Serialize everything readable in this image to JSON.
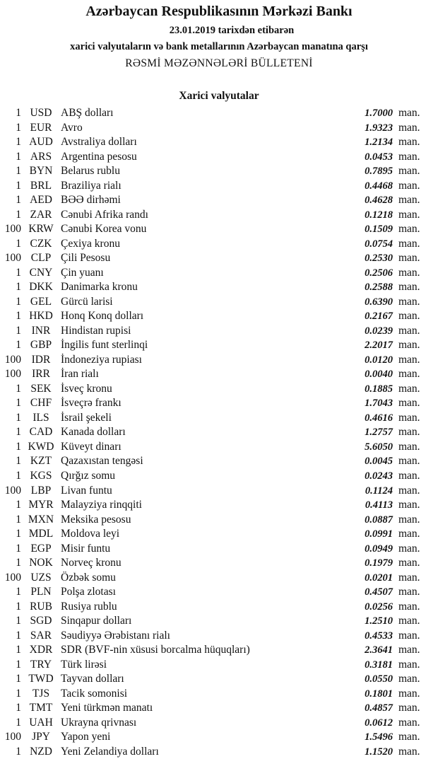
{
  "header": {
    "title": "Azərbaycan Respublikasının Mərkəzi Bankı",
    "date_line": "23.01.2019  tarixdən etibarən",
    "subtitle": "xarici valyutaların və bank metallarının Azərbaycan manatına qarşı",
    "bulletin": "RƏSMİ MƏZƏNNƏLƏRİ BÜLLETENİ",
    "section": "Xarici valyutalar"
  },
  "unit_label": "man.",
  "rates": [
    {
      "nominal": "1",
      "code": "USD",
      "name": "ABŞ dolları",
      "value": "1.7000"
    },
    {
      "nominal": "1",
      "code": "EUR",
      "name": "Avro",
      "value": "1.9323"
    },
    {
      "nominal": "1",
      "code": "AUD",
      "name": "Avstraliya dolları",
      "value": "1.2134"
    },
    {
      "nominal": "1",
      "code": "ARS",
      "name": "Argentina pesosu",
      "value": "0.0453"
    },
    {
      "nominal": "1",
      "code": "BYN",
      "name": "Belarus rublu",
      "value": "0.7895"
    },
    {
      "nominal": "1",
      "code": "BRL",
      "name": "Braziliya rialı",
      "value": "0.4468"
    },
    {
      "nominal": "1",
      "code": "AED",
      "name": "BƏƏ dirhəmi",
      "value": "0.4628"
    },
    {
      "nominal": "1",
      "code": "ZAR",
      "name": "Cənubi Afrika randı",
      "value": "0.1218"
    },
    {
      "nominal": "100",
      "code": "KRW",
      "name": "Cənubi Korea vonu",
      "value": "0.1509"
    },
    {
      "nominal": "1",
      "code": "CZK",
      "name": "Çexiya kronu",
      "value": "0.0754"
    },
    {
      "nominal": "100",
      "code": "CLP",
      "name": "Çili Pesosu",
      "value": "0.2530"
    },
    {
      "nominal": "1",
      "code": "CNY",
      "name": "Çin yuanı",
      "value": "0.2506"
    },
    {
      "nominal": "1",
      "code": "DKK",
      "name": "Danimarka kronu",
      "value": "0.2588"
    },
    {
      "nominal": "1",
      "code": "GEL",
      "name": "Gürcü larisi",
      "value": "0.6390"
    },
    {
      "nominal": "1",
      "code": "HKD",
      "name": "Honq Konq dolları",
      "value": "0.2167"
    },
    {
      "nominal": "1",
      "code": "INR",
      "name": "Hindistan rupisi",
      "value": "0.0239"
    },
    {
      "nominal": "1",
      "code": "GBP",
      "name": "İngilis funt sterlinqi",
      "value": "2.2017"
    },
    {
      "nominal": "100",
      "code": "IDR",
      "name": "İndoneziya rupiası",
      "value": "0.0120"
    },
    {
      "nominal": "100",
      "code": "IRR",
      "name": "İran rialı",
      "value": "0.0040"
    },
    {
      "nominal": "1",
      "code": "SEK",
      "name": "İsveç kronu",
      "value": "0.1885"
    },
    {
      "nominal": "1",
      "code": "CHF",
      "name": "İsveçrə frankı",
      "value": "1.7043"
    },
    {
      "nominal": "1",
      "code": "ILS",
      "name": "İsrail şekeli",
      "value": "0.4616"
    },
    {
      "nominal": "1",
      "code": "CAD",
      "name": "Kanada dolları",
      "value": "1.2757"
    },
    {
      "nominal": "1",
      "code": "KWD",
      "name": "Küveyt dinarı",
      "value": "5.6050"
    },
    {
      "nominal": "1",
      "code": "KZT",
      "name": "Qazaxıstan tengəsi",
      "value": "0.0045"
    },
    {
      "nominal": "1",
      "code": "KGS",
      "name": "Qırğız somu",
      "value": "0.0243"
    },
    {
      "nominal": "100",
      "code": "LBP",
      "name": "Livan funtu",
      "value": "0.1124"
    },
    {
      "nominal": "1",
      "code": "MYR",
      "name": "Malayziya rinqqiti",
      "value": "0.4113"
    },
    {
      "nominal": "1",
      "code": "MXN",
      "name": "Meksika pesosu",
      "value": "0.0887"
    },
    {
      "nominal": "1",
      "code": "MDL",
      "name": "Moldova leyi",
      "value": "0.0991"
    },
    {
      "nominal": "1",
      "code": "EGP",
      "name": "Misir funtu",
      "value": "0.0949"
    },
    {
      "nominal": "1",
      "code": "NOK",
      "name": "Norveç kronu",
      "value": "0.1979"
    },
    {
      "nominal": "100",
      "code": "UZS",
      "name": "Özbək somu",
      "value": "0.0201"
    },
    {
      "nominal": "1",
      "code": "PLN",
      "name": "Polşa zlotası",
      "value": "0.4507"
    },
    {
      "nominal": "1",
      "code": "RUB",
      "name": "Rusiya rublu",
      "value": "0.0256"
    },
    {
      "nominal": "1",
      "code": "SGD",
      "name": "Sinqapur dolları",
      "value": "1.2510"
    },
    {
      "nominal": "1",
      "code": "SAR",
      "name": "Səudiyyə Ərəbistanı rialı",
      "value": "0.4533"
    },
    {
      "nominal": "1",
      "code": "XDR",
      "name": "SDR (BVF-nin xüsusi borcalma hüquqları)",
      "value": "2.3641"
    },
    {
      "nominal": "1",
      "code": "TRY",
      "name": "Türk lirəsi",
      "value": "0.3181"
    },
    {
      "nominal": "1",
      "code": "TWD",
      "name": "Tayvan dolları",
      "value": "0.0550"
    },
    {
      "nominal": "1",
      "code": "TJS",
      "name": "Tacik somonisi",
      "value": "0.1801"
    },
    {
      "nominal": "1",
      "code": "TMT",
      "name": "Yeni türkmən manatı",
      "value": "0.4857"
    },
    {
      "nominal": "1",
      "code": "UAH",
      "name": "Ukrayna qrivnası",
      "value": "0.0612"
    },
    {
      "nominal": "100",
      "code": "JPY",
      "name": "Yapon yeni",
      "value": "1.5496"
    },
    {
      "nominal": "1",
      "code": "NZD",
      "name": "Yeni Zelandiya dolları",
      "value": "1.1520"
    }
  ]
}
